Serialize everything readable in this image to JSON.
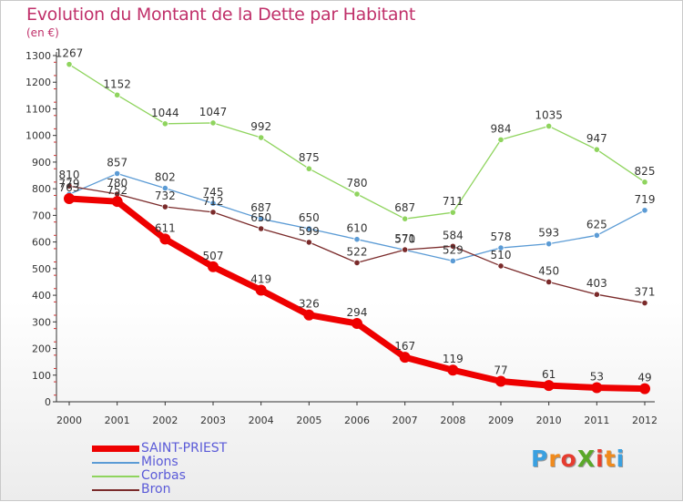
{
  "header": {
    "title": "Evolution du Montant de la Dette par Habitant",
    "unit": "(en €)"
  },
  "logo": {
    "text": "ProXiti",
    "letters": [
      "P",
      "r",
      "o",
      "X",
      "i",
      "t",
      "i"
    ],
    "colors": [
      "#3aa0e0",
      "#f08a1c",
      "#e63c2f",
      "#5aa82a",
      "#e63c2f",
      "#f08a1c",
      "#3aa0e0"
    ]
  },
  "chart_data": {
    "type": "line",
    "title": "Evolution du Montant de la Dette par Habitant",
    "ylabel": "(en €)",
    "xlabel": "",
    "x": [
      "2000",
      "2001",
      "2002",
      "2003",
      "2004",
      "2005",
      "2006",
      "2007",
      "2008",
      "2009",
      "2010",
      "2011",
      "2012"
    ],
    "ylim": [
      0,
      1300
    ],
    "yticks": [
      0,
      100,
      200,
      300,
      400,
      500,
      600,
      700,
      800,
      900,
      1000,
      1100,
      1200,
      1300
    ],
    "grid": false,
    "legend_position": "bottom-left",
    "series": [
      {
        "name": "SAINT-PRIEST",
        "color": "#ee0000",
        "values": [
          763,
          752,
          611,
          507,
          419,
          326,
          294,
          167,
          119,
          77,
          61,
          53,
          49
        ]
      },
      {
        "name": "Mions",
        "color": "#5b9bd5",
        "values": [
          779,
          857,
          802,
          745,
          687,
          650,
          610,
          570,
          529,
          578,
          593,
          625,
          719
        ]
      },
      {
        "name": "Corbas",
        "color": "#8fd45e",
        "values": [
          1267,
          1152,
          1044,
          1047,
          992,
          875,
          780,
          687,
          711,
          984,
          1035,
          947,
          825
        ]
      },
      {
        "name": "Bron",
        "color": "#7a2a2a",
        "values": [
          810,
          780,
          732,
          712,
          650,
          599,
          522,
          571,
          584,
          510,
          450,
          403,
          371
        ]
      }
    ]
  }
}
